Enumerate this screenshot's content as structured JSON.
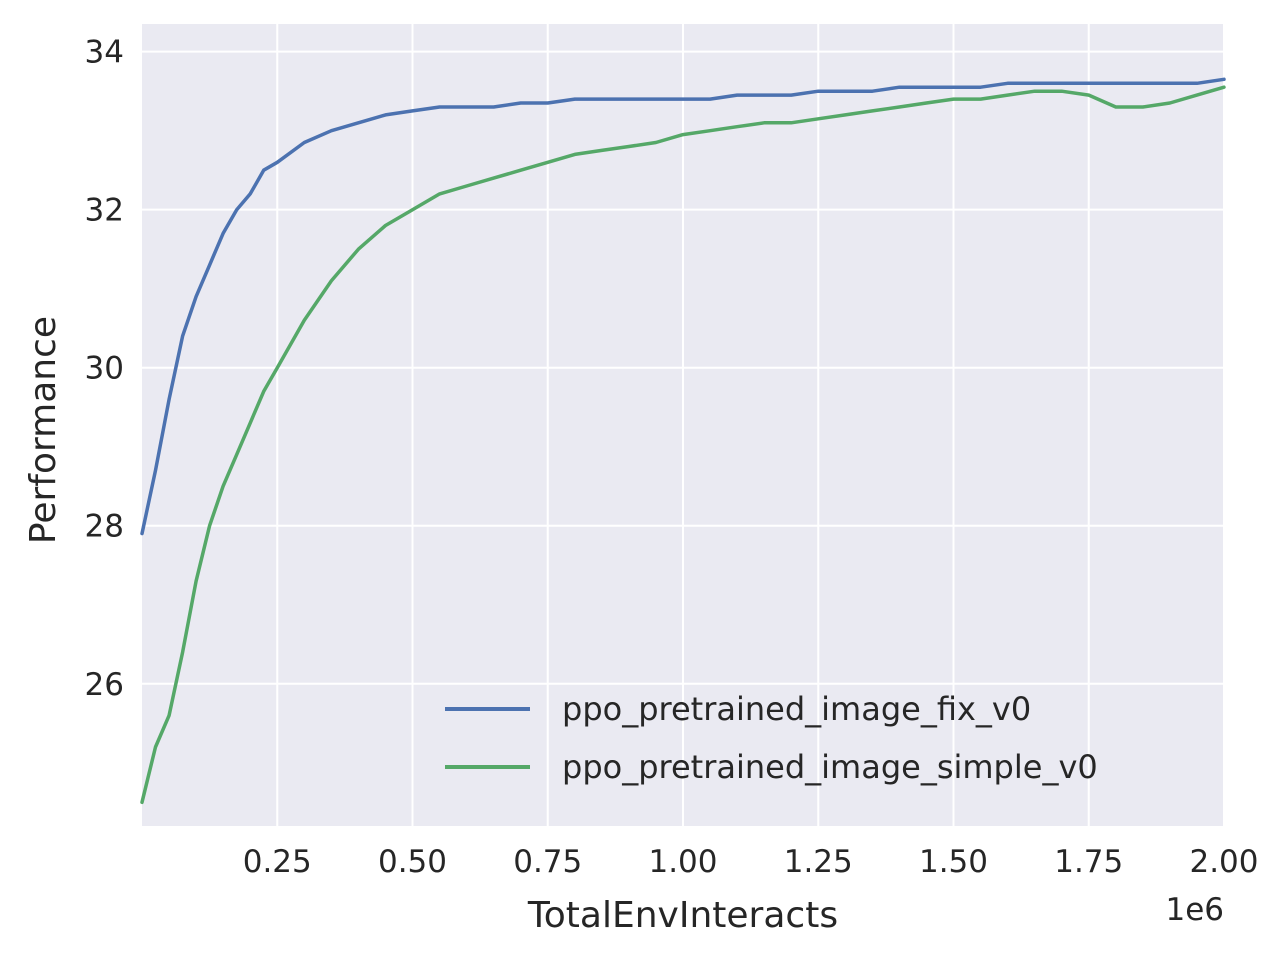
{
  "chart_data": {
    "type": "line",
    "title": "",
    "xlabel": "TotalEnvInteracts",
    "ylabel": "Performance",
    "x_offset_label": "1e6",
    "xlim": [
      0,
      2000000
    ],
    "ylim": [
      24.2,
      34.35
    ],
    "x_ticks": [
      250000,
      500000,
      750000,
      1000000,
      1250000,
      1500000,
      1750000,
      2000000
    ],
    "x_tick_labels": [
      "0.25",
      "0.50",
      "0.75",
      "1.00",
      "1.25",
      "1.50",
      "1.75",
      "2.00"
    ],
    "y_ticks": [
      26,
      28,
      30,
      32,
      34
    ],
    "y_tick_labels": [
      "26",
      "28",
      "30",
      "32",
      "34"
    ],
    "grid": true,
    "background": "#eaeaf2",
    "legend_position": "lower-right",
    "series": [
      {
        "name": "ppo_pretrained_image_fix_v0",
        "color": "#4c72b0",
        "x": [
          0,
          25000,
          50000,
          75000,
          100000,
          125000,
          150000,
          175000,
          200000,
          225000,
          250000,
          300000,
          350000,
          400000,
          450000,
          500000,
          550000,
          600000,
          650000,
          700000,
          750000,
          800000,
          850000,
          900000,
          950000,
          1000000,
          1050000,
          1100000,
          1150000,
          1200000,
          1250000,
          1300000,
          1350000,
          1400000,
          1450000,
          1500000,
          1550000,
          1600000,
          1650000,
          1700000,
          1750000,
          1800000,
          1850000,
          1900000,
          1950000,
          2000000
        ],
        "y": [
          27.9,
          28.7,
          29.6,
          30.4,
          30.9,
          31.3,
          31.7,
          32.0,
          32.2,
          32.5,
          32.6,
          32.85,
          33.0,
          33.1,
          33.2,
          33.25,
          33.3,
          33.3,
          33.3,
          33.35,
          33.35,
          33.4,
          33.4,
          33.4,
          33.4,
          33.4,
          33.4,
          33.45,
          33.45,
          33.45,
          33.5,
          33.5,
          33.5,
          33.55,
          33.55,
          33.55,
          33.55,
          33.6,
          33.6,
          33.6,
          33.6,
          33.6,
          33.6,
          33.6,
          33.6,
          33.65
        ]
      },
      {
        "name": "ppo_pretrained_image_simple_v0",
        "color": "#55a868",
        "x": [
          0,
          25000,
          50000,
          75000,
          100000,
          125000,
          150000,
          175000,
          200000,
          225000,
          250000,
          300000,
          350000,
          400000,
          450000,
          500000,
          550000,
          600000,
          650000,
          700000,
          750000,
          800000,
          850000,
          900000,
          950000,
          1000000,
          1050000,
          1100000,
          1150000,
          1200000,
          1250000,
          1300000,
          1350000,
          1400000,
          1450000,
          1500000,
          1550000,
          1600000,
          1650000,
          1700000,
          1750000,
          1800000,
          1850000,
          1900000,
          1950000,
          2000000
        ],
        "y": [
          24.5,
          25.2,
          25.6,
          26.4,
          27.3,
          28.0,
          28.5,
          28.9,
          29.3,
          29.7,
          30.0,
          30.6,
          31.1,
          31.5,
          31.8,
          32.0,
          32.2,
          32.3,
          32.4,
          32.5,
          32.6,
          32.7,
          32.75,
          32.8,
          32.85,
          32.95,
          33.0,
          33.05,
          33.1,
          33.1,
          33.15,
          33.2,
          33.25,
          33.3,
          33.35,
          33.4,
          33.4,
          33.45,
          33.5,
          33.5,
          33.45,
          33.3,
          33.3,
          33.35,
          33.45,
          33.55
        ]
      }
    ]
  }
}
